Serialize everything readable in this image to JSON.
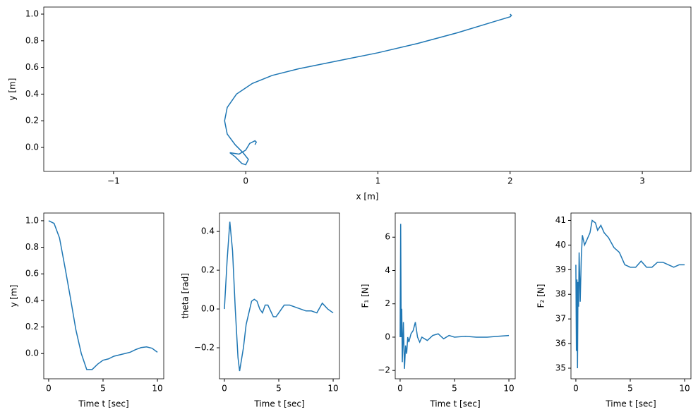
{
  "chart_data": [
    {
      "type": "line",
      "x_label": "x [m]",
      "y_label": "y [m]",
      "color": "#1f77b4",
      "x": [
        2.0,
        2.01,
        2.0,
        1.9,
        1.6,
        1.3,
        1.0,
        0.7,
        0.4,
        0.2,
        0.05,
        -0.07,
        -0.14,
        -0.16,
        -0.14,
        -0.08,
        -0.02,
        0.02,
        0.0,
        -0.03,
        -0.08,
        -0.12,
        -0.05,
        0.0,
        0.03,
        0.07,
        0.08,
        0.07
      ],
      "values": [
        1.0,
        0.99,
        0.98,
        0.95,
        0.86,
        0.78,
        0.71,
        0.65,
        0.59,
        0.54,
        0.48,
        0.4,
        0.3,
        0.2,
        0.1,
        0.02,
        -0.04,
        -0.09,
        -0.13,
        -0.12,
        -0.07,
        -0.04,
        -0.05,
        -0.02,
        0.03,
        0.05,
        0.04,
        0.02
      ],
      "xlim": [
        -1.528,
        3.368
      ],
      "ylim": [
        -0.18,
        1.053
      ],
      "xticks": [
        {
          "value": -1,
          "label": "−1"
        },
        {
          "value": 0,
          "label": "0"
        },
        1,
        2,
        3
      ],
      "yticks": [
        {
          "value": 0,
          "label": "0.0"
        },
        0.2,
        0.4,
        0.6,
        0.8,
        {
          "value": 1,
          "label": "1.0"
        }
      ]
    },
    {
      "type": "line",
      "x_label": "Time t [sec]",
      "y_label": "y [m]",
      "color": "#1f77b4",
      "x": [
        0,
        0.5,
        1,
        1.5,
        2,
        2.5,
        3,
        3.5,
        4,
        4.5,
        5,
        5.5,
        6,
        6.5,
        7,
        7.5,
        8,
        8.5,
        9,
        9.5,
        10
      ],
      "values": [
        1.0,
        0.98,
        0.87,
        0.65,
        0.42,
        0.18,
        0.0,
        -0.12,
        -0.12,
        -0.08,
        -0.05,
        -0.04,
        -0.02,
        -0.01,
        0.0,
        0.01,
        0.03,
        0.045,
        0.05,
        0.04,
        0.01
      ],
      "xlim": [
        -0.45,
        10.58
      ],
      "ylim": [
        -0.19,
        1.058
      ],
      "xticks": [
        0,
        5,
        10
      ],
      "yticks": [
        {
          "value": 0,
          "label": "0.0"
        },
        0.2,
        0.4,
        0.6,
        0.8,
        {
          "value": 1,
          "label": "1.0"
        }
      ]
    },
    {
      "type": "line",
      "x_label": "Time t [sec]",
      "y_label": "theta [rad]",
      "color": "#1f77b4",
      "x": [
        0,
        0.25,
        0.5,
        0.75,
        1.0,
        1.25,
        1.4,
        1.75,
        2.0,
        2.5,
        2.75,
        3,
        3.25,
        3.5,
        3.75,
        4,
        4.25,
        4.5,
        4.75,
        5,
        5.5,
        6,
        6.5,
        7,
        7.5,
        8,
        8.5,
        9,
        9.5,
        10
      ],
      "values": [
        0,
        0.25,
        0.45,
        0.3,
        0.0,
        -0.25,
        -0.32,
        -0.2,
        -0.08,
        0.04,
        0.05,
        0.04,
        0.0,
        -0.02,
        0.02,
        0.02,
        -0.01,
        -0.04,
        -0.04,
        -0.02,
        0.02,
        0.02,
        0.01,
        0.0,
        -0.01,
        -0.01,
        -0.02,
        0.03,
        0.0,
        -0.02
      ],
      "xlim": [
        -0.45,
        10.58
      ],
      "ylim": [
        -0.36,
        0.495
      ],
      "xticks": [
        0,
        5,
        10
      ],
      "yticks": [
        {
          "value": -0.2,
          "label": "−0.2"
        },
        {
          "value": 0,
          "label": "0.0"
        },
        0.2,
        0.4
      ]
    },
    {
      "type": "line",
      "x_label": "Time t [sec]",
      "y_label": "F₁ [N]",
      "color": "#1f77b4",
      "x": [
        0,
        0.05,
        0.1,
        0.15,
        0.2,
        0.3,
        0.4,
        0.5,
        0.6,
        0.7,
        0.8,
        1.0,
        1.2,
        1.4,
        1.6,
        1.8,
        2.0,
        2.5,
        3.0,
        3.5,
        4,
        4.5,
        5,
        6,
        7,
        8,
        9,
        10
      ],
      "values": [
        0,
        6.8,
        0,
        1.7,
        -1.5,
        0.9,
        -1.9,
        -0.5,
        -1.0,
        0.0,
        -0.3,
        0.2,
        0.4,
        0.9,
        0.0,
        -0.3,
        0.0,
        -0.2,
        0.1,
        0.2,
        -0.1,
        0.1,
        0.0,
        0.05,
        0.0,
        0.0,
        0.05,
        0.1
      ],
      "xlim": [
        -0.45,
        10.58
      ],
      "ylim": [
        -2.5,
        7.45
      ],
      "xticks": [
        0,
        5,
        10
      ],
      "yticks": [
        {
          "value": -2,
          "label": "−2"
        },
        0,
        2,
        4,
        6
      ]
    },
    {
      "type": "line",
      "x_label": "Time t [sec]",
      "y_label": "F₂ [N]",
      "color": "#1f77b4",
      "x": [
        0,
        0.05,
        0.1,
        0.15,
        0.2,
        0.25,
        0.3,
        0.4,
        0.5,
        0.6,
        0.8,
        1.0,
        1.3,
        1.5,
        1.8,
        2.0,
        2.3,
        2.6,
        3.0,
        3.5,
        4,
        4.5,
        5,
        5.5,
        6,
        6.5,
        7,
        7.5,
        8,
        8.5,
        9,
        9.5,
        10
      ],
      "values": [
        39.2,
        35.7,
        38.6,
        35.0,
        38.5,
        37.5,
        39.7,
        37.7,
        39.5,
        40.4,
        40.0,
        40.2,
        40.5,
        41.0,
        40.9,
        40.6,
        40.8,
        40.5,
        40.3,
        39.9,
        39.7,
        39.2,
        39.1,
        39.1,
        39.35,
        39.1,
        39.1,
        39.3,
        39.3,
        39.2,
        39.1,
        39.2,
        39.2
      ],
      "xlim": [
        -0.45,
        10.58
      ],
      "ylim": [
        34.57,
        41.3
      ],
      "xticks": [
        0,
        5,
        10
      ],
      "yticks": [
        35,
        36,
        37,
        38,
        39,
        40,
        41
      ]
    }
  ]
}
